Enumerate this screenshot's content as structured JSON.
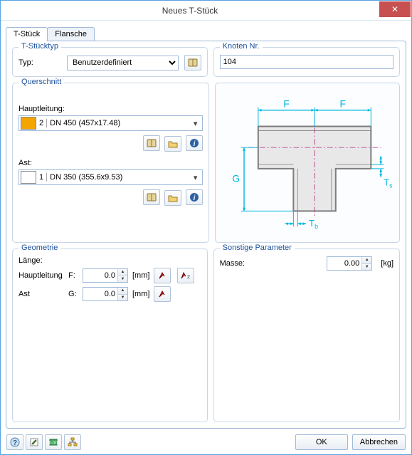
{
  "window": {
    "title": "Neues T-Stück"
  },
  "tabs": {
    "tpiece": "T-Stück",
    "flanges": "Flansche"
  },
  "typ_group": {
    "caption": "T-Stücktyp",
    "label": "Typ:",
    "value": "Benutzerdefiniert"
  },
  "node_group": {
    "caption": "Knoten Nr.",
    "value": "104"
  },
  "cross_group": {
    "caption": "Querschnitt",
    "hauptleitung_label": "Hauptleitung:",
    "haupt_color": "#f5a500",
    "haupt_num": "2",
    "haupt_desc": "DN 450 (457x17.48)",
    "ast_label": "Ast:",
    "ast_color": "#ffffff",
    "ast_num": "1",
    "ast_desc": "DN 350 (355.6x9.53)"
  },
  "geom_group": {
    "caption": "Geometrie",
    "length_label": "Länge:",
    "haupt_label": "Hauptleitung",
    "haupt_sym": "F:",
    "haupt_val": "0.0",
    "ast_label": "Ast",
    "ast_sym": "G:",
    "ast_val": "0.0",
    "unit": "[mm]"
  },
  "other_group": {
    "caption": "Sonstige Parameter",
    "mass_label": "Masse:",
    "mass_val": "0.00",
    "mass_unit": "[kg]"
  },
  "diagram": {
    "label_F": "F",
    "label_G": "G",
    "label_Tb": "T",
    "label_Tb_sub": "b",
    "label_Ts": "T",
    "label_Ts_sub": "s",
    "outline_color": "#7d7d7d",
    "fill_color": "#e8e8e8",
    "dim_color": "#00b5de",
    "centerline_color": "#b84a8d"
  },
  "buttons": {
    "ok": "OK",
    "cancel": "Abbrechen"
  },
  "icons": {
    "book": "📖",
    "folder": "📂",
    "info": "ℹ",
    "pin": "📌",
    "pin2": "📍",
    "help": "?",
    "edit": "✎",
    "vals": "≣",
    "tree": "⌬"
  }
}
